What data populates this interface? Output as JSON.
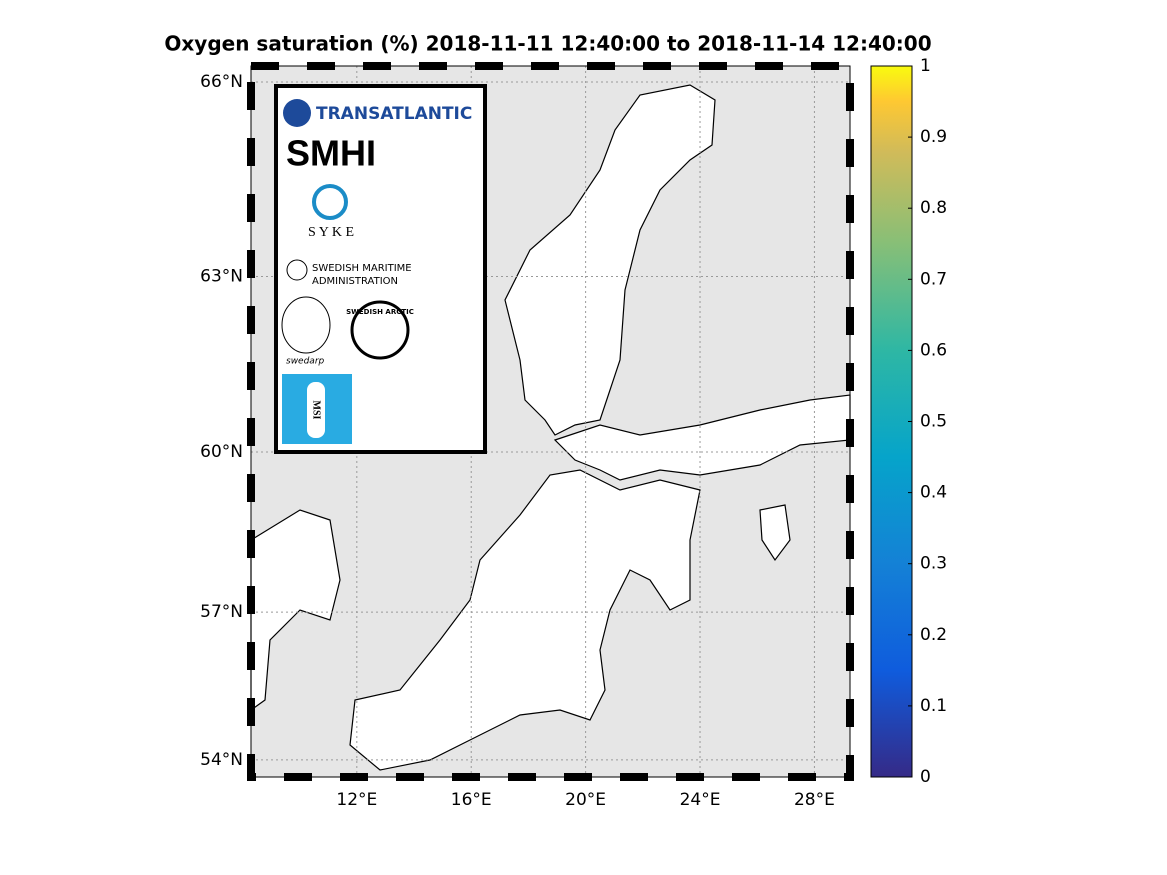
{
  "title": "Oxygen saturation (%) 2018-11-11 12:40:00  to  2018-11-14 12:40:00",
  "map": {
    "lon_ticks": [
      {
        "value": 12,
        "label": "12°E"
      },
      {
        "value": 16,
        "label": "16°E"
      },
      {
        "value": 20,
        "label": "20°E"
      },
      {
        "value": 24,
        "label": "24°E"
      },
      {
        "value": 28,
        "label": "28°E"
      }
    ],
    "lat_ticks": [
      {
        "value": 54,
        "label": "54°N"
      },
      {
        "value": 57,
        "label": "57°N"
      },
      {
        "value": 60,
        "label": "60°N"
      },
      {
        "value": 63,
        "label": "63°N"
      },
      {
        "value": 66,
        "label": "66°N"
      }
    ]
  },
  "colorbar": {
    "lim": [
      0,
      1
    ],
    "ticks": [
      0,
      0.1,
      0.2,
      0.3,
      0.4,
      0.5,
      0.6,
      0.7,
      0.8,
      0.9,
      1
    ]
  },
  "logos": {
    "transatlantic": "TRANSATLANTIC",
    "smhi": "SMHI",
    "syke": "S Y K E",
    "maritime_1": "SWEDISH MARITIME",
    "maritime_2": "ADMINISTRATION",
    "arctic": "SWEDISH ARCTIC",
    "swedarp": "swedarp",
    "msi": "MSI"
  }
}
